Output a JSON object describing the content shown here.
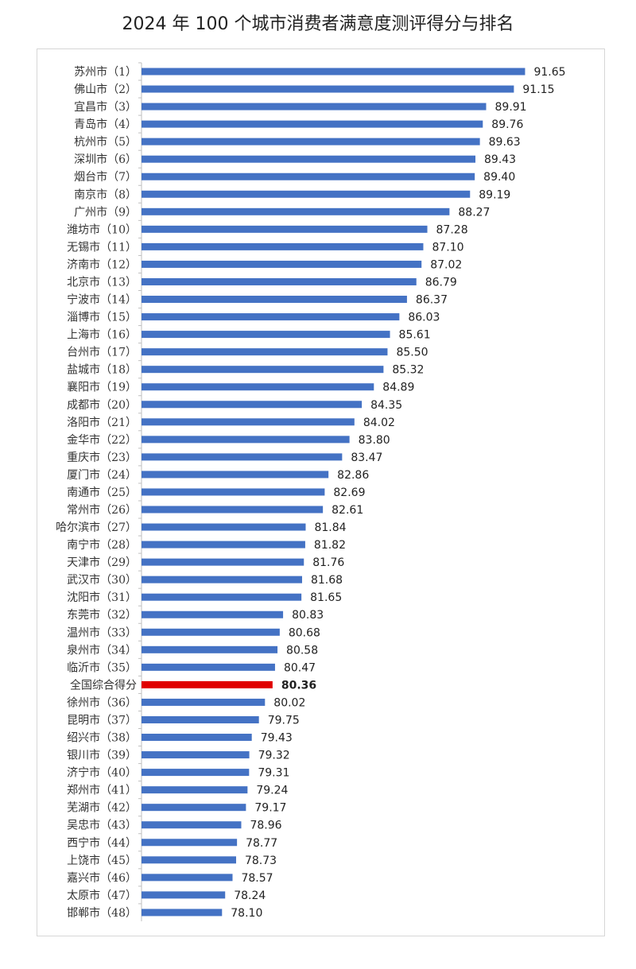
{
  "chart_data": {
    "type": "bar",
    "orientation": "horizontal",
    "title": "2024 年 100 个城市消费者满意度测评得分与排名",
    "xlabel": "",
    "ylabel": "",
    "xlim": [
      74.5,
      92.7
    ],
    "grid": false,
    "legend": "none",
    "colors": {
      "bar": "#4472C4",
      "highlight": "#E00000",
      "axis": "#bfbfbf"
    },
    "categories": [
      "苏州市（1）",
      "佛山市（2）",
      "宜昌市（3）",
      "青岛市（4）",
      "杭州市（5）",
      "深圳市（6）",
      "烟台市（7）",
      "南京市（8）",
      "广州市（9）",
      "潍坊市（10）",
      "无锡市（11）",
      "济南市（12）",
      "北京市（13）",
      "宁波市（14）",
      "淄博市（15）",
      "上海市（16）",
      "台州市（17）",
      "盐城市（18）",
      "襄阳市（19）",
      "成都市（20）",
      "洛阳市（21）",
      "金华市（22）",
      "重庆市（23）",
      "厦门市（24）",
      "南通市（25）",
      "常州市（26）",
      "哈尔滨市（27）",
      "南宁市（28）",
      "天津市（29）",
      "武汉市（30）",
      "沈阳市（31）",
      "东莞市（32）",
      "温州市（33）",
      "泉州市（34）",
      "临沂市（35）",
      "全国综合得分",
      "徐州市（36）",
      "昆明市（37）",
      "绍兴市（38）",
      "银川市（39）",
      "济宁市（40）",
      "郑州市（41）",
      "芜湖市（42）",
      "吴忠市（43）",
      "西宁市（44）",
      "上饶市（45）",
      "嘉兴市（46）",
      "太原市（47）",
      "邯郸市（48）"
    ],
    "values": [
      91.65,
      91.15,
      89.91,
      89.76,
      89.63,
      89.43,
      89.4,
      89.19,
      88.27,
      87.28,
      87.1,
      87.02,
      86.79,
      86.37,
      86.03,
      85.61,
      85.5,
      85.32,
      84.89,
      84.35,
      84.02,
      83.8,
      83.47,
      82.86,
      82.69,
      82.61,
      81.84,
      81.82,
      81.76,
      81.68,
      81.65,
      80.83,
      80.68,
      80.58,
      80.47,
      80.36,
      80.02,
      79.75,
      79.43,
      79.32,
      79.31,
      79.24,
      79.17,
      78.96,
      78.77,
      78.73,
      78.57,
      78.24,
      78.1
    ],
    "value_labels": [
      "91.65",
      "91.15",
      "89.91",
      "89.76",
      "89.63",
      "89.43",
      "89.40",
      "89.19",
      "88.27",
      "87.28",
      "87.10",
      "87.02",
      "86.79",
      "86.37",
      "86.03",
      "85.61",
      "85.50",
      "85.32",
      "84.89",
      "84.35",
      "84.02",
      "83.80",
      "83.47",
      "82.86",
      "82.69",
      "82.61",
      "81.84",
      "81.82",
      "81.76",
      "81.68",
      "81.65",
      "80.83",
      "80.68",
      "80.58",
      "80.47",
      "80.36",
      "80.02",
      "79.75",
      "79.43",
      "79.32",
      "79.31",
      "79.24",
      "79.17",
      "78.96",
      "78.77",
      "78.73",
      "78.57",
      "78.24",
      "78.10"
    ],
    "highlight_index": 35
  }
}
